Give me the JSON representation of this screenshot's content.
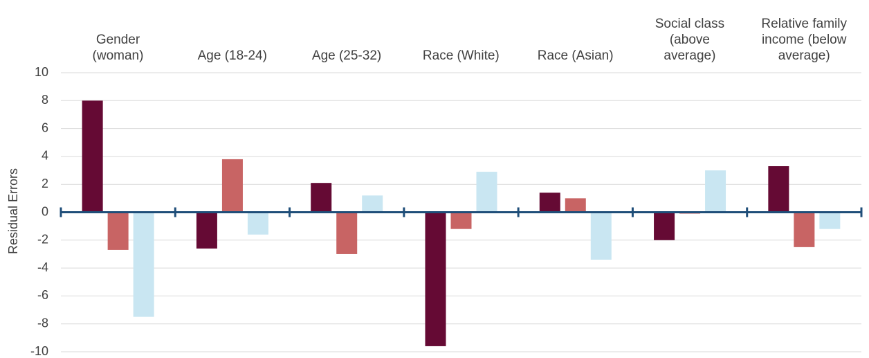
{
  "chart_data": {
    "type": "bar",
    "y_label": "Residual Errors",
    "categories": [
      "Gender\n(woman)",
      "Age (18-24)",
      "Age (25-32)",
      "Race (White)",
      "Race (Asian)",
      "Social class\n(above\naverage)",
      "Relative family\nincome  (below\naverage)"
    ],
    "series": [
      {
        "color": "#650a34",
        "values": [
          8,
          -2.6,
          2.1,
          -9.6,
          1.4,
          -2.0,
          3.3
        ]
      },
      {
        "color": "#c86464",
        "values": [
          -2.7,
          3.8,
          -3.0,
          -1.2,
          1.0,
          -0.1,
          -2.5
        ]
      },
      {
        "color": "#c9e6f2",
        "values": [
          -7.5,
          -1.6,
          1.2,
          2.9,
          -3.4,
          3.0,
          -1.2
        ]
      }
    ],
    "ylim": [
      -10,
      10
    ],
    "yticks": [
      -10,
      -8,
      -6,
      -4,
      -2,
      0,
      2,
      4,
      6,
      8,
      10
    ],
    "grid": true
  }
}
